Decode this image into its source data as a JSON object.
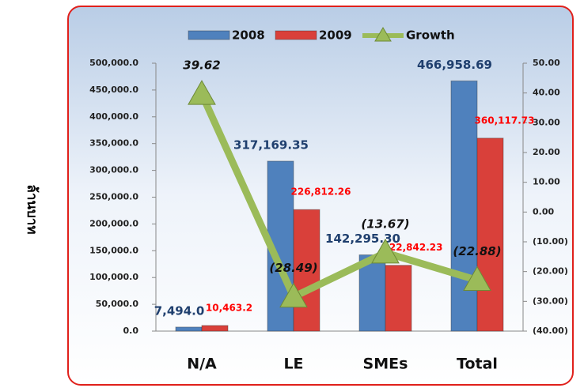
{
  "chart_data": {
    "type": "bar-line",
    "y_label": "ล้านบาท",
    "categories": [
      "N/A",
      "LE",
      "SMEs",
      "Total"
    ],
    "series": [
      {
        "name": "2008",
        "type": "bar",
        "color": "#4f81bd",
        "values": [
          7494.0,
          317169.35,
          142295.3,
          466958.69
        ],
        "value_labels": [
          "7,494.0",
          "317,169.35",
          "142,295.30",
          "466,958.69"
        ],
        "label_color": "#1f3f6e"
      },
      {
        "name": "2009",
        "type": "bar",
        "color": "#d9403a",
        "values": [
          10463.2,
          226812.26,
          122842.23,
          360117.73
        ],
        "value_labels": [
          "10,463.2",
          "226,812.26",
          "122,842.23",
          "360,117.73"
        ],
        "label_color": "#ff0000"
      },
      {
        "name": "Growth",
        "type": "line",
        "axis": "y2",
        "color": "#9bbb59",
        "values": [
          39.62,
          -28.49,
          -13.67,
          -22.88
        ],
        "value_labels": [
          "39.62",
          "(28.49)",
          "(13.67)",
          "(22.88)"
        ],
        "label_color": "#111111"
      }
    ],
    "ylim": [
      0,
      500000
    ],
    "yticks": [
      {
        "value": 0,
        "label": "0.0"
      },
      {
        "value": 50000,
        "label": "50,000.0"
      },
      {
        "value": 100000,
        "label": "100,000.0"
      },
      {
        "value": 150000,
        "label": "150,000.0"
      },
      {
        "value": 200000,
        "label": "200,000.0"
      },
      {
        "value": 250000,
        "label": "250,000.0"
      },
      {
        "value": 300000,
        "label": "300,000.0"
      },
      {
        "value": 350000,
        "label": "350,000.0"
      },
      {
        "value": 400000,
        "label": "400,000.0"
      },
      {
        "value": 450000,
        "label": "450,000.0"
      },
      {
        "value": 500000,
        "label": "500,000.0"
      }
    ],
    "y2lim": [
      -40,
      50
    ],
    "y2ticks": [
      {
        "value": -40,
        "label": "(40.00)"
      },
      {
        "value": -30,
        "label": "(30.00)"
      },
      {
        "value": -20,
        "label": "(20.00)"
      },
      {
        "value": -10,
        "label": "(10.00)"
      },
      {
        "value": 0,
        "label": "0.00"
      },
      {
        "value": 10,
        "label": "10.00"
      },
      {
        "value": 20,
        "label": "20.00"
      },
      {
        "value": 30,
        "label": "30.00"
      },
      {
        "value": 40,
        "label": "40.00"
      },
      {
        "value": 50,
        "label": "50.00"
      }
    ],
    "y2_negative_color": "#ff0000",
    "legend": "top"
  }
}
